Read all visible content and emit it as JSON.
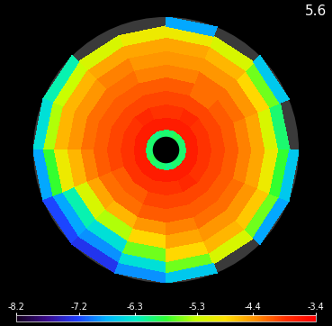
{
  "chart_data": {
    "type": "heatmap",
    "annotation": "5.6",
    "tick_labels": false,
    "radius_edges": [
      0.1,
      0.16,
      0.25,
      0.35,
      0.45,
      0.55,
      0.65,
      0.75,
      0.85,
      0.93,
      1.0
    ],
    "cells": [
      [
        -6.0,
        -6.0,
        -5.9,
        -6.0,
        -6.0,
        -6.1,
        -6.0,
        -6.0,
        -6.0,
        -5.9,
        -6.0,
        -6.0,
        -6.1,
        -6.0,
        -6.0,
        -6.0
      ],
      [
        -3.7,
        -3.7,
        -3.7,
        -3.7,
        -3.7,
        -3.7,
        -3.7,
        -3.7,
        -3.7,
        -3.7,
        -3.7,
        -3.7,
        -3.7,
        -3.7,
        -3.7,
        -3.7
      ],
      [
        -3.9,
        -3.9,
        -3.8,
        -3.9,
        -3.9,
        -3.8,
        -3.9,
        -3.9,
        -3.9,
        -3.9,
        -3.9,
        -3.9,
        -3.9,
        -3.8,
        -3.9,
        -3.9
      ],
      [
        -4.0,
        -4.0,
        -4.0,
        -4.0,
        -4.0,
        -4.0,
        -4.0,
        -4.0,
        -4.0,
        -4.1,
        -4.1,
        -4.0,
        -4.0,
        -4.0,
        -4.0,
        -4.0
      ],
      [
        -4.1,
        -4.1,
        -4.2,
        -4.1,
        -4.1,
        -4.1,
        -4.1,
        -4.1,
        -4.1,
        -4.2,
        -4.2,
        -4.1,
        -4.1,
        -4.1,
        -4.1,
        -4.1
      ],
      [
        -4.3,
        -4.2,
        -4.2,
        -4.3,
        -4.3,
        -4.2,
        -4.2,
        -4.2,
        -4.3,
        -4.5,
        -4.6,
        -4.4,
        -4.3,
        -4.2,
        -4.2,
        -4.3
      ],
      [
        -4.5,
        -4.4,
        -4.4,
        -4.4,
        -4.4,
        -4.3,
        -4.4,
        -4.4,
        -4.6,
        -5.2,
        -5.4,
        -4.8,
        -4.5,
        -4.4,
        -4.4,
        -4.5
      ],
      [
        -5.2,
        -4.8,
        -4.6,
        -4.5,
        -4.5,
        -4.5,
        -4.6,
        -4.6,
        -5.0,
        -6.2,
        -6.4,
        -5.6,
        -4.8,
        -4.6,
        -4.7,
        -5.0
      ],
      [
        -6.0,
        -5.6,
        -5.2,
        -5.0,
        -5.0,
        -5.2,
        -5.3,
        -5.4,
        -5.8,
        -6.8,
        -6.9,
        -6.4,
        -5.6,
        -5.2,
        -5.6,
        -5.8
      ],
      [
        null,
        -6.6,
        null,
        -6.8,
        null,
        null,
        -6.2,
        -6.4,
        -6.8,
        -7.2,
        -7.3,
        -6.9,
        -6.6,
        null,
        -6.8,
        -6.6
      ]
    ],
    "colorbar_range": [
      -8.2,
      -3.4
    ],
    "colorbar_ticks": [
      -8.2,
      -7.2,
      -6.3,
      -5.3,
      -4.4,
      -3.4
    ]
  }
}
